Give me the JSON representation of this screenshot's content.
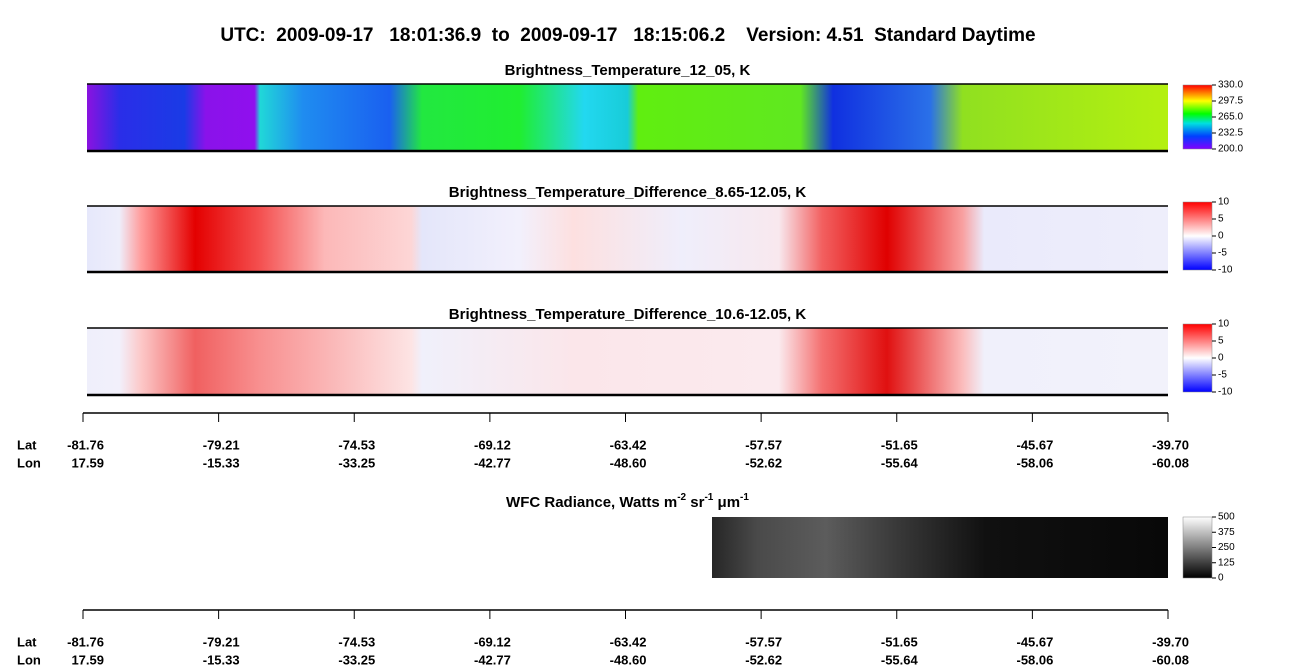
{
  "title": "UTC:  2009-09-17   18:01:36.9  to  2009-09-17   18:15:06.2    Version: 4.51  Standard Daytime",
  "chart_data": [
    {
      "type": "heatmap",
      "title": "Brightness_Temperature_12_05, K",
      "zlim": [
        200,
        330
      ],
      "zticks": [
        {
          "value": 330,
          "label": "330.0"
        },
        {
          "value": 297.5,
          "label": "297.5"
        },
        {
          "value": 265,
          "label": "265.0"
        },
        {
          "value": 232.5,
          "label": "232.5"
        },
        {
          "value": 200,
          "label": "200.0"
        }
      ]
    },
    {
      "type": "heatmap",
      "title": "Brightness_Temperature_Difference_8.65-12.05, K",
      "zlim": [
        -10,
        10
      ],
      "zticks": [
        10,
        5,
        0,
        -5,
        -10
      ]
    },
    {
      "type": "heatmap",
      "title": "Brightness_Temperature_Difference_10.6-12.05, K",
      "zlim": [
        -10,
        10
      ],
      "zticks": [
        10,
        5,
        0,
        -5,
        -10
      ]
    },
    {
      "type": "heatmap",
      "title_parts": [
        "WFC Radiance, Watts m",
        "-2",
        " sr",
        "-1",
        " μm",
        "-1"
      ],
      "zlim": [
        0,
        500
      ],
      "zticks": [
        500,
        375,
        250,
        125,
        0
      ]
    }
  ],
  "axes": [
    {
      "row_labels": [
        "Lat",
        "Lon"
      ],
      "lat": [
        "-81.76",
        "-79.21",
        "-74.53",
        "-69.12",
        "-63.42",
        "-57.57",
        "-51.65",
        "-45.67",
        "-39.70"
      ],
      "lon": [
        "17.59",
        "-15.33",
        "-33.25",
        "-42.77",
        "-48.60",
        "-52.62",
        "-55.64",
        "-58.06",
        "-60.08"
      ]
    },
    {
      "row_labels": [
        "Lat",
        "Lon"
      ],
      "lat": [
        "-81.76",
        "-79.21",
        "-74.53",
        "-69.12",
        "-63.42",
        "-57.57",
        "-51.65",
        "-45.67",
        "-39.70"
      ],
      "lon": [
        "17.59",
        "-15.33",
        "-33.25",
        "-42.77",
        "-48.60",
        "-52.62",
        "-55.64",
        "-58.06",
        "-60.08"
      ]
    }
  ]
}
